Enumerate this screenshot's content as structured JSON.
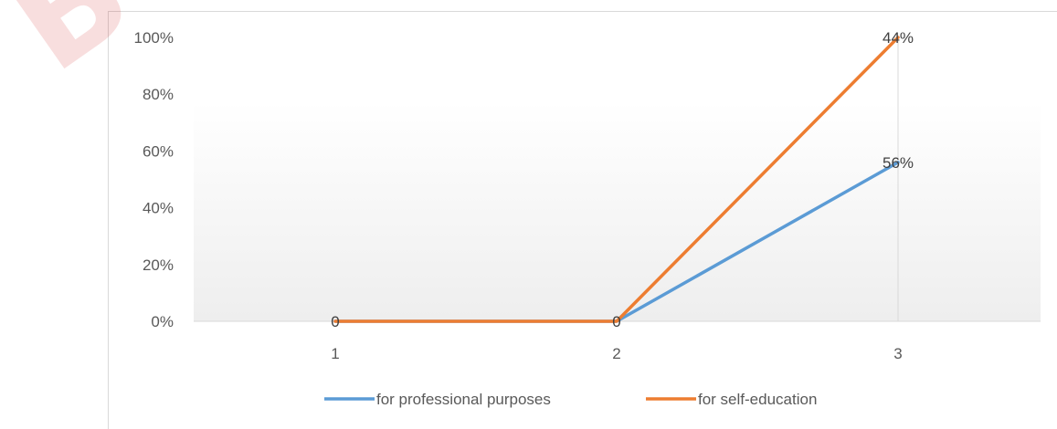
{
  "watermark": "Buri",
  "chart_data": {
    "type": "line",
    "categories": [
      "1",
      "2",
      "3"
    ],
    "ylim": [
      0,
      1
    ],
    "yticks": [
      "0%",
      "20%",
      "40%",
      "60%",
      "80%",
      "100%"
    ],
    "grid": "vertical-at-last-category",
    "legend_position": "bottom",
    "series": [
      {
        "name": "for professional purposes",
        "color": "#5b9bd5",
        "values": [
          0,
          0,
          0.56
        ],
        "labels": [
          "",
          "0",
          "56%"
        ]
      },
      {
        "name": "for self-education",
        "color": "#ed7d31",
        "values": [
          0,
          0,
          1.0
        ],
        "labels": [
          "0",
          "",
          "44%"
        ]
      }
    ]
  }
}
